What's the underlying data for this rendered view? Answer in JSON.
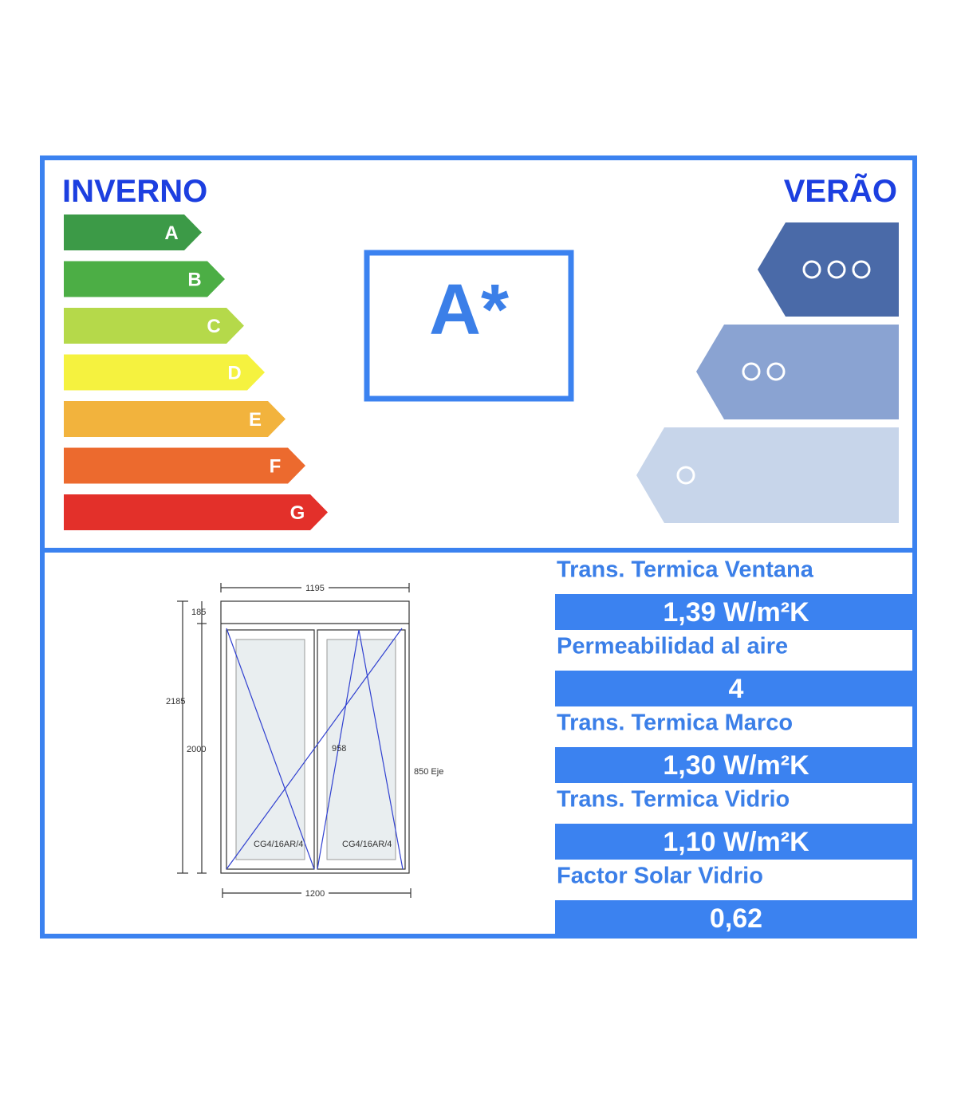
{
  "header": {
    "winter_title": "INVERNO",
    "summer_title": "VERÃO"
  },
  "winter_classes": [
    "A",
    "B",
    "C",
    "D",
    "E",
    "F",
    "G"
  ],
  "rating": "A*",
  "window_drawing": {
    "top_width": "1195",
    "top_height": "185",
    "total_height": "2185",
    "sash_height": "2000",
    "handle_height": "958",
    "axis_height": "850 Eje",
    "glass_left": "CG4/16AR/4",
    "glass_right": "CG4/16AR/4",
    "bottom_width": "1200"
  },
  "properties": [
    {
      "label": "Trans. Termica Ventana",
      "value": "1,39 W/m²K"
    },
    {
      "label": "Permeabilidad al aire",
      "value": "4"
    },
    {
      "label": "Trans. Termica Marco",
      "value": "1,30 W/m²K"
    },
    {
      "label": "Trans. Termica Vidrio",
      "value": "1,10 W/m²K"
    },
    {
      "label": "Factor Solar Vidrio",
      "value": "0,62"
    }
  ]
}
